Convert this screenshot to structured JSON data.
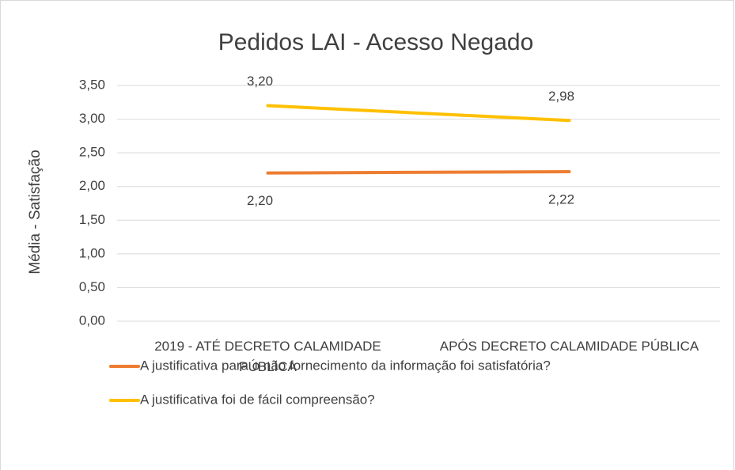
{
  "chart_data": {
    "type": "line",
    "title": "Pedidos LAI - Acesso Negado",
    "y_label": "Média - Satisfação",
    "categories": [
      "2019 - ATÉ DECRETO CALAMIDADE PÚBLICA",
      "APÓS DECRETO CALAMIDADE PÚBLICA"
    ],
    "series": [
      {
        "name": "A justificativa para o não fornecimento da informação foi satisfatória?",
        "color": "#ed7d31",
        "values": [
          2.2,
          2.22
        ],
        "value_labels": [
          "2,20",
          "2,22"
        ],
        "label_position": "below"
      },
      {
        "name": "A justificativa foi de fácil compreensão?",
        "color": "#ffc000",
        "values": [
          3.2,
          2.98
        ],
        "value_labels": [
          "3,20",
          "2,98"
        ],
        "label_position": "above"
      }
    ],
    "ylim": [
      0,
      3.5
    ],
    "yticks": [
      {
        "value": 0,
        "label": "0,00"
      },
      {
        "value": 0.5,
        "label": "0,50"
      },
      {
        "value": 1,
        "label": "1,00"
      },
      {
        "value": 1.5,
        "label": "1,50"
      },
      {
        "value": 2,
        "label": "2,00"
      },
      {
        "value": 2.5,
        "label": "2,50"
      },
      {
        "value": 3,
        "label": "3,00"
      },
      {
        "value": 3.5,
        "label": "3,50"
      }
    ],
    "grid": true,
    "legend": "bottom"
  }
}
